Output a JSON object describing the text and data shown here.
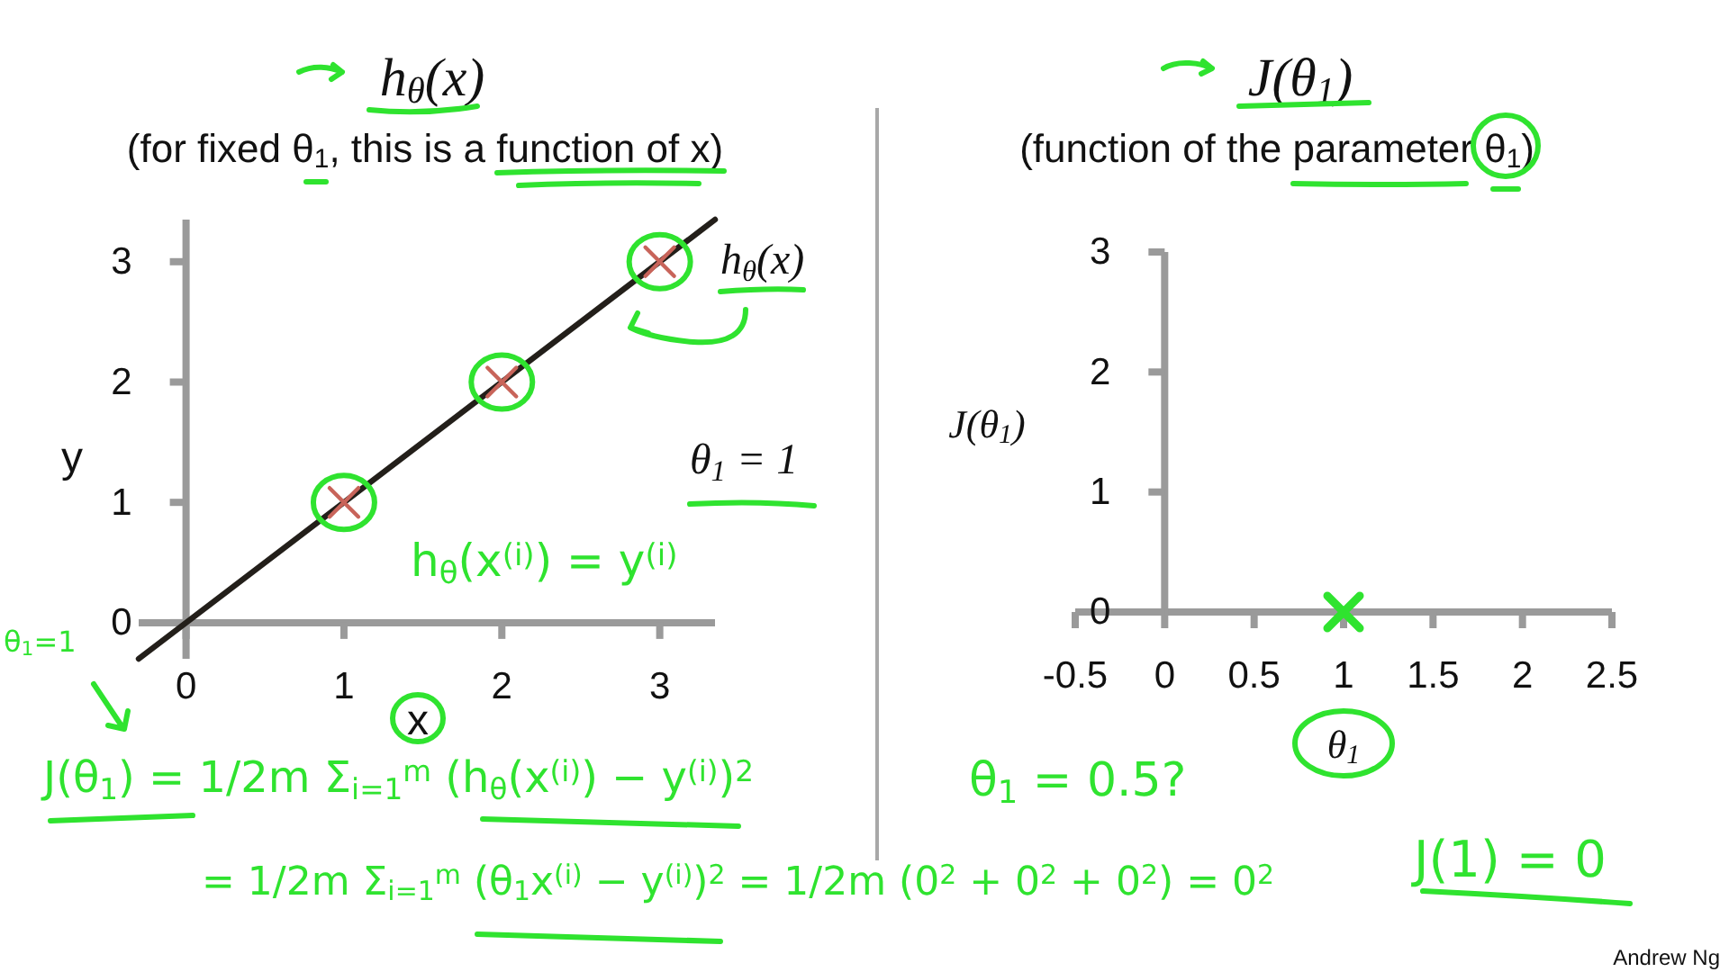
{
  "chart_data": [
    {
      "type": "scatter",
      "title": "h$_{θ}$(x)",
      "subtitle": "(for fixed θ$_{1}$, this is a function of x)",
      "xlabel": "x",
      "ylabel": "y",
      "series": [
        {
          "type": "line",
          "color": "#231f1a",
          "x": [
            -0.3,
            3.35
          ],
          "values": [
            -0.3,
            3.35
          ]
        },
        {
          "type": "scatter",
          "color": "#c8645a",
          "marker": "cross",
          "x": [
            1,
            2,
            3
          ],
          "values": [
            1,
            2,
            3
          ]
        }
      ],
      "xlim": [
        -0.3,
        3.35
      ],
      "ylim": [
        -0.3,
        3.35
      ],
      "xticks": [
        0,
        1,
        2,
        3
      ],
      "yticks": [
        0,
        1,
        2,
        3
      ],
      "annotations": [
        "h$_{θ}$(x)",
        "θ$_{1}$ = 1",
        "h$_{θ}$(x$^{(i)}$) = y$^{(i)}$",
        "θ$_{1}$=1",
        "J(θ$_{1}$) = 1/2m Σ$_{i=1}$$^{m}$ (h$_{θ}$(x$^{(i)}$) − y$^{(i)}$)$^{2}$",
        "= 1/2m Σ$_{i=1}$$^{m}$ (θ$_{1}$x$^{(i)}$ − y$^{(i)}$)$^{2}$ = 1/2m (0$^{2}$ + 0$^{2}$ + 0$^{2}$) = 0$^{2}$"
      ]
    },
    {
      "type": "scatter",
      "title": "J(θ$_{1}$)",
      "subtitle": "(function of the parameter θ$_{1}$)",
      "xlabel": "θ$_{1}$",
      "ylabel": "J(θ$_{1}$)",
      "series": [
        {
          "type": "scatter",
          "color": "#2fe32f",
          "marker": "cross",
          "x": [
            1
          ],
          "values": [
            0
          ]
        }
      ],
      "xlim": [
        -0.5,
        2.5
      ],
      "ylim": [
        0,
        3
      ],
      "xticks": [
        -0.5,
        0,
        0.5,
        1,
        1.5,
        2,
        2.5
      ],
      "yticks": [
        0,
        1,
        2,
        3
      ],
      "annotations": [
        "θ$_{1}$ = 0.5?",
        "J(1) = 0",
        "Andrew Ng"
      ]
    }
  ]
}
